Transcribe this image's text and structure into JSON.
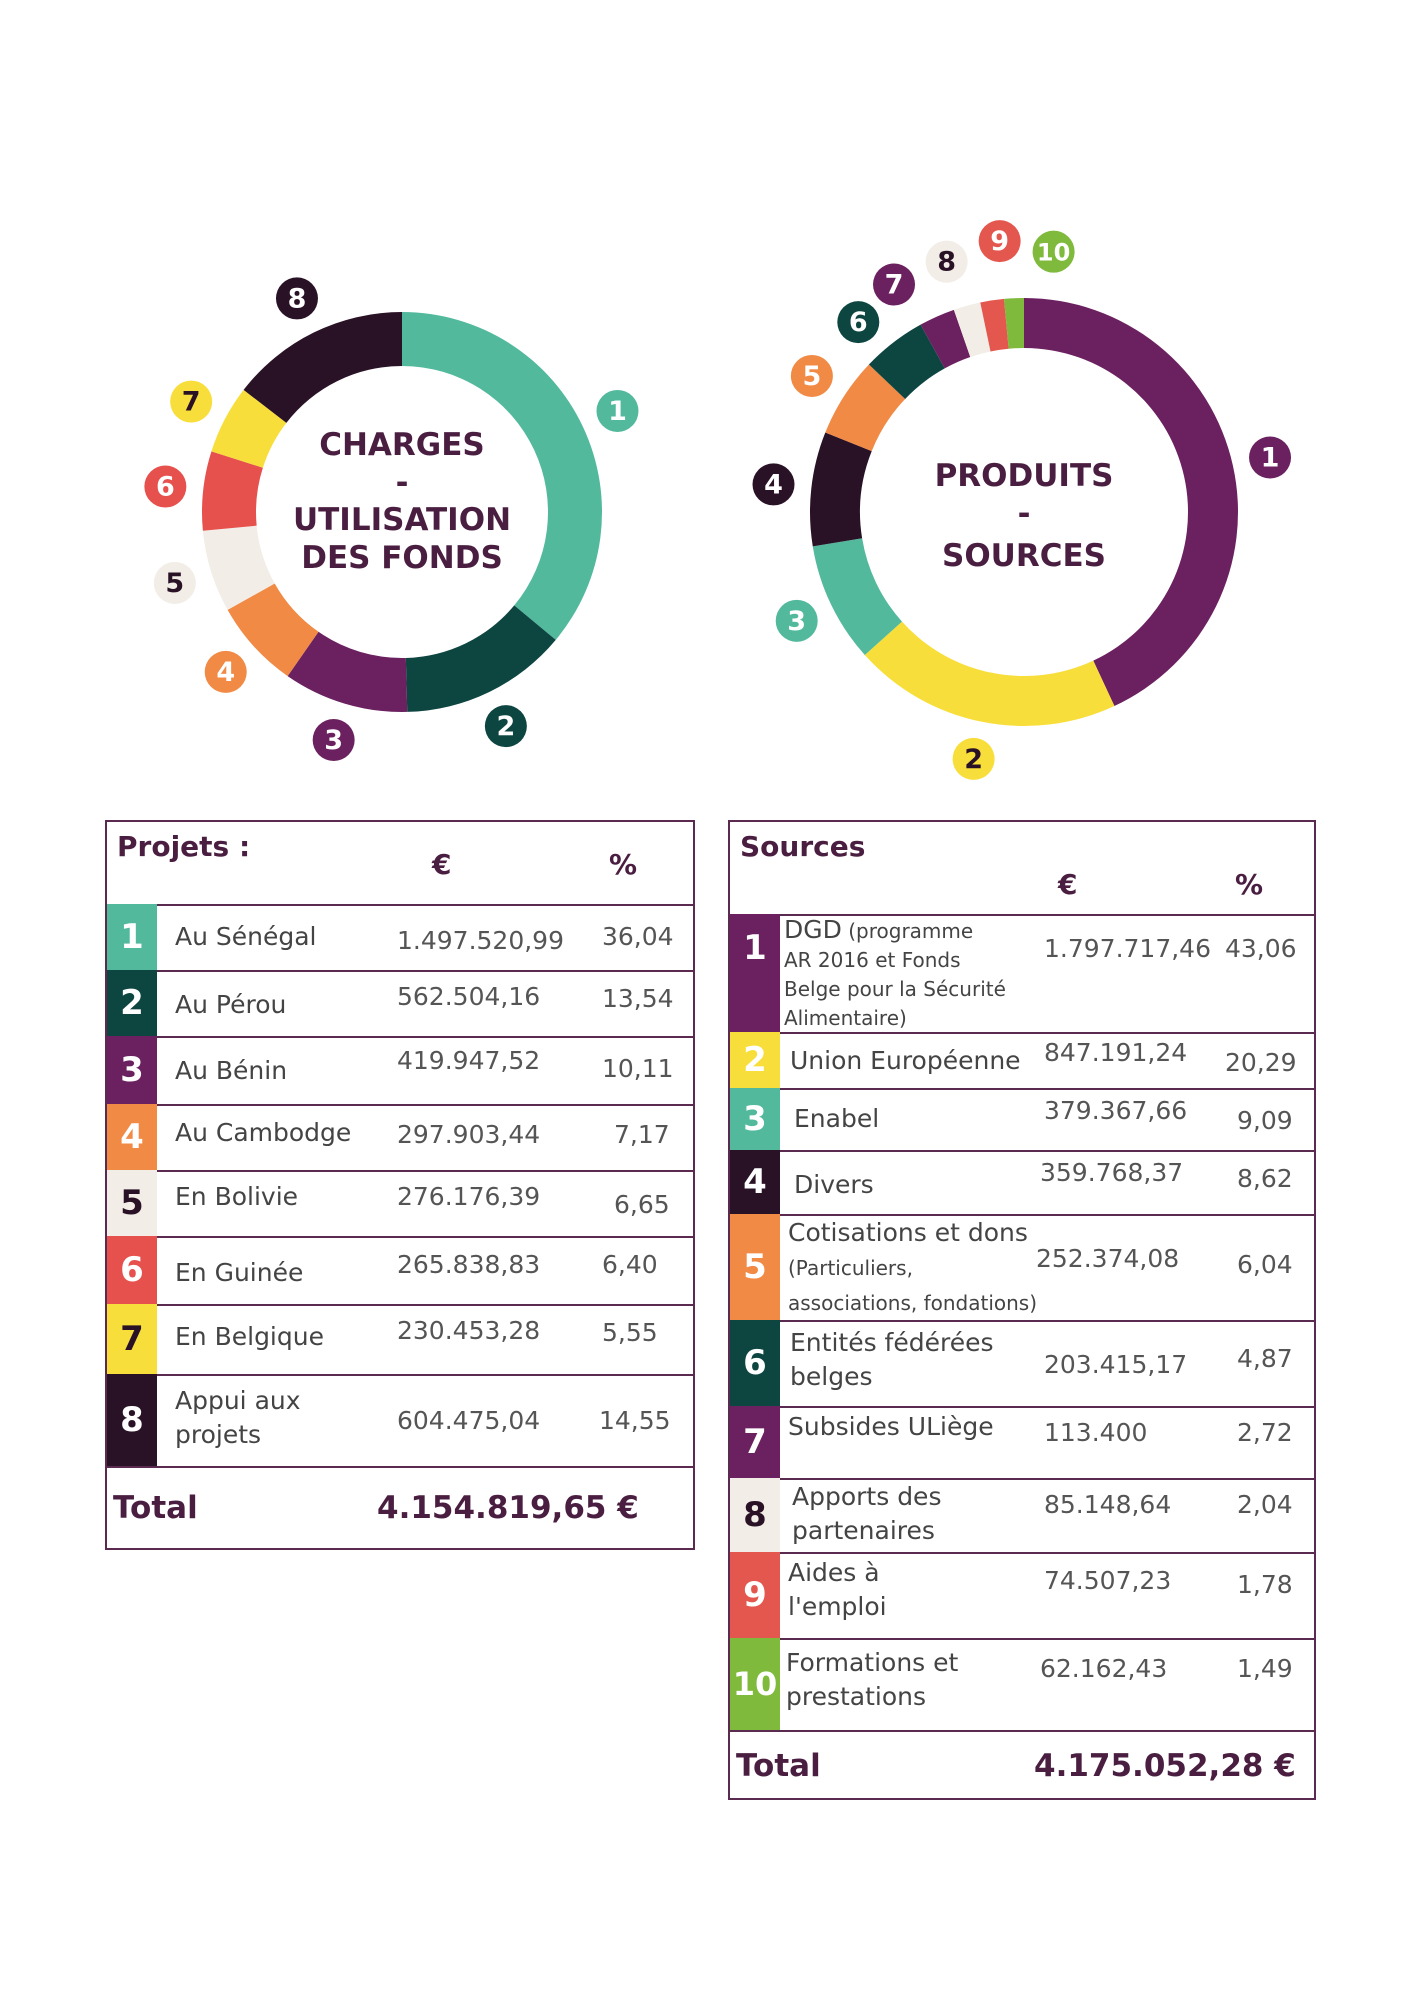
{
  "colors": {
    "c1": "#52b99d",
    "c2": "#0d4540",
    "c3": "#6b2060",
    "c4": "#f08a45",
    "c5": "#f2ede6",
    "c6": "#e6504d",
    "c7": "#f8de3a",
    "c8": "#2a1226",
    "c9": "#e4574e",
    "c10": "#7fba3c",
    "frame": "#5a2a50",
    "dark_text": "#4a1e40"
  },
  "chart_data": [
    {
      "type": "pie",
      "title_lines": [
        "CHARGES",
        "-",
        "UTILISATION",
        "DES FONDS"
      ],
      "slices": [
        {
          "badge": "1",
          "label": "Au Sénégal",
          "value": 1497520.99,
          "pct": 36.04,
          "color": "#52b99d"
        },
        {
          "badge": "2",
          "label": "Au Pérou",
          "value": 562504.16,
          "pct": 13.54,
          "color": "#0d4540"
        },
        {
          "badge": "3",
          "label": "Au Bénin",
          "value": 419947.52,
          "pct": 10.11,
          "color": "#6b2060"
        },
        {
          "badge": "4",
          "label": "Au Cambodge",
          "value": 297903.44,
          "pct": 7.17,
          "color": "#f08a45"
        },
        {
          "badge": "5",
          "label": "En Bolivie",
          "value": 276176.39,
          "pct": 6.65,
          "color": "#f2ede6"
        },
        {
          "badge": "6",
          "label": "En Guinée",
          "value": 265838.83,
          "pct": 6.4,
          "color": "#e6504d"
        },
        {
          "badge": "7",
          "label": "En Belgique",
          "value": 230453.28,
          "pct": 5.55,
          "color": "#f8de3a"
        },
        {
          "badge": "8",
          "label": "Appui aux projets",
          "value": 604475.04,
          "pct": 14.55,
          "color": "#2a1226"
        }
      ]
    },
    {
      "type": "pie",
      "title_lines": [
        "PRODUITS",
        "-",
        "SOURCES"
      ],
      "slices": [
        {
          "badge": "1",
          "label": "DGD (programme AR 2016 et Fonds Belge pour la Sécurité Alimentaire)",
          "value": 1797717.46,
          "pct": 43.06,
          "color": "#6b2060"
        },
        {
          "badge": "2",
          "label": "Union Européenne",
          "value": 847191.24,
          "pct": 20.29,
          "color": "#f8de3a"
        },
        {
          "badge": "3",
          "label": "Enabel",
          "value": 379367.66,
          "pct": 9.09,
          "color": "#52b99d"
        },
        {
          "badge": "4",
          "label": "Divers",
          "value": 359768.37,
          "pct": 8.62,
          "color": "#2a1226"
        },
        {
          "badge": "5",
          "label": "Cotisations et dons (Particuliers, associations, fondations)",
          "value": 252374.08,
          "pct": 6.04,
          "color": "#f08a45"
        },
        {
          "badge": "6",
          "label": "Entités fédérées belges",
          "value": 203415.17,
          "pct": 4.87,
          "color": "#0d4540"
        },
        {
          "badge": "7",
          "label": "Subsides ULiège",
          "value": 113400,
          "pct": 2.72,
          "color": "#6b2060"
        },
        {
          "badge": "8",
          "label": "Apports des partenaires",
          "value": 85148.64,
          "pct": 2.04,
          "color": "#f2ede6"
        },
        {
          "badge": "9",
          "label": "Aides à l'emploi",
          "value": 74507.23,
          "pct": 1.78,
          "color": "#e4574e"
        },
        {
          "badge": "10",
          "label": "Formations et prestations",
          "value": 62162.43,
          "pct": 1.49,
          "color": "#7fba3c"
        }
      ]
    }
  ],
  "projets_table": {
    "title": "Projets :",
    "col_eur": "€",
    "col_pct": "%",
    "rows": [
      {
        "n": "1",
        "label": "Au Sénégal",
        "eur": "1.497.520,99",
        "pct": "36,04"
      },
      {
        "n": "2",
        "label": "Au Pérou",
        "eur": "562.504,16",
        "pct": "13,54"
      },
      {
        "n": "3",
        "label": "Au Bénin",
        "eur": "419.947,52",
        "pct": "10,11"
      },
      {
        "n": "4",
        "label": "Au Cambodge",
        "eur": "297.903,44",
        "pct": "7,17"
      },
      {
        "n": "5",
        "label": "En Bolivie",
        "eur": "276.176,39",
        "pct": "6,65"
      },
      {
        "n": "6",
        "label": "En Guinée",
        "eur": "265.838,83",
        "pct": "6,40"
      },
      {
        "n": "7",
        "label": "En Belgique",
        "eur": "230.453,28",
        "pct": "5,55"
      },
      {
        "n": "8",
        "label_l1": "Appui aux",
        "label_l2": "projets",
        "eur": "604.475,04",
        "pct": "14,55"
      }
    ],
    "total_label": "Total",
    "total_value": "4.154.819,65 €"
  },
  "sources_table": {
    "title": "Sources",
    "col_eur": "€",
    "col_pct": "%",
    "rows": [
      {
        "n": "1",
        "label_l1": "DGD",
        "label_l1b": " (programme",
        "label_l2": "AR 2016 et Fonds",
        "label_l3": "Belge pour la Sécurité",
        "label_l4": "Alimentaire)",
        "eur": "1.797.717,46",
        "pct": "43,06"
      },
      {
        "n": "2",
        "label": "Union Européenne",
        "eur": "847.191,24",
        "pct": "20,29"
      },
      {
        "n": "3",
        "label": "Enabel",
        "eur": "379.367,66",
        "pct": "9,09"
      },
      {
        "n": "4",
        "label": "Divers",
        "eur": "359.768,37",
        "pct": "8,62"
      },
      {
        "n": "5",
        "label_l1": "Cotisations et dons",
        "label_l2": "(Particuliers,",
        "label_l3": "associations, fondations)",
        "eur": "252.374,08",
        "pct": "6,04"
      },
      {
        "n": "6",
        "label_l1": "Entités fédérées",
        "label_l2": "belges",
        "eur": "203.415,17",
        "pct": "4,87"
      },
      {
        "n": "7",
        "label": "Subsides ULiège",
        "eur": "113.400",
        "pct": "2,72"
      },
      {
        "n": "8",
        "label_l1": "Apports des",
        "label_l2": "partenaires",
        "eur": "85.148,64",
        "pct": "2,04"
      },
      {
        "n": "9",
        "label_l1": "Aides à",
        "label_l2": "l'emploi",
        "eur": "74.507,23",
        "pct": "1,78"
      },
      {
        "n": "10",
        "label_l1": "Formations et",
        "label_l2": "prestations",
        "eur": "62.162,43",
        "pct": "1,49"
      }
    ],
    "total_label": "Total",
    "total_value": "4.175.052,28 €"
  }
}
